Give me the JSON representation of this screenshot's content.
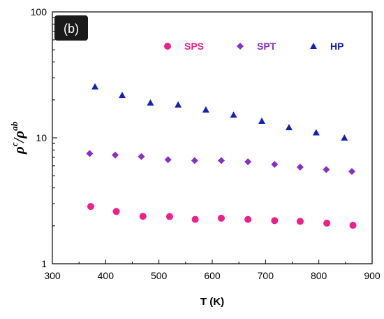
{
  "chart_data": {
    "type": "scatter",
    "panel_label": "(b)",
    "xlabel": "T (K)",
    "ylabel_base": "ρ",
    "ylabel_sup1": "c",
    "ylabel_sep": "/ρ",
    "ylabel_sup2": "ab",
    "xlim": [
      300,
      900
    ],
    "ylim": [
      1,
      100
    ],
    "yscale": "log",
    "grid": false,
    "legend_position": "top",
    "x_ticks": [
      300,
      400,
      500,
      600,
      700,
      800,
      900
    ],
    "x_tick_labels": [
      "300",
      "400",
      "500",
      "600",
      "700",
      "800",
      "900"
    ],
    "y_ticks": [
      1,
      10,
      100
    ],
    "y_tick_labels": [
      "1",
      "10",
      "100"
    ],
    "series": [
      {
        "name": "SPS",
        "marker": "circle",
        "color": "#ef1e8c",
        "x": [
          372,
          420,
          470,
          520,
          568,
          617,
          667,
          717,
          765,
          815,
          864
        ],
        "y": [
          2.85,
          2.6,
          2.38,
          2.37,
          2.25,
          2.3,
          2.25,
          2.2,
          2.17,
          2.1,
          2.02
        ]
      },
      {
        "name": "SPT",
        "marker": "diamond",
        "color": "#8a2ec8",
        "x": [
          370,
          418,
          467,
          517,
          567,
          617,
          667,
          717,
          765,
          814,
          862
        ],
        "y": [
          7.5,
          7.3,
          7.1,
          6.7,
          6.6,
          6.6,
          6.45,
          6.15,
          5.85,
          5.6,
          5.4
        ]
      },
      {
        "name": "HP",
        "marker": "triangle",
        "color": "#1620b8",
        "x": [
          380,
          431,
          484,
          536,
          588,
          640,
          693,
          744,
          795,
          848
        ],
        "y": [
          25.5,
          21.8,
          19.0,
          18.3,
          16.7,
          15.2,
          13.6,
          12.1,
          11.0,
          10.0
        ]
      }
    ]
  }
}
